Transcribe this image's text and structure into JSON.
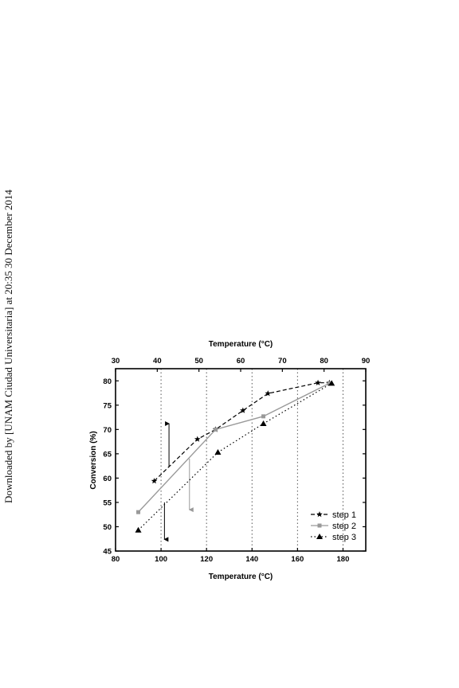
{
  "side_note": "Downloaded by [UNAM Ciudad Universitaria] at 20:35 30 December 2014",
  "chart_data": {
    "type": "line",
    "xlabel": "Temperature (°C)",
    "xlabel_top": "Temperature (°C)",
    "ylabel": "Conversion (%)",
    "xlim": [
      80,
      190
    ],
    "xlim_top": [
      30,
      90
    ],
    "ylim": [
      45,
      82.5
    ],
    "xticks": [
      80,
      100,
      120,
      140,
      160,
      180
    ],
    "xticks_top": [
      30,
      40,
      50,
      60,
      70,
      80,
      90
    ],
    "yticks": [
      45,
      50,
      55,
      60,
      65,
      70,
      75,
      80
    ],
    "vertical_dotted_lines_x": [
      100,
      120,
      140,
      160,
      180
    ],
    "legend_position": "bottom-right",
    "series": [
      {
        "name": "step 1",
        "line_style": "dashed",
        "marker": "star",
        "color": "#000000",
        "x": [
          97,
          116,
          124,
          136,
          147,
          169,
          174
        ],
        "y": [
          59.4,
          68.0,
          70.0,
          73.9,
          77.4,
          79.6,
          79.6
        ]
      },
      {
        "name": "step 2",
        "line_style": "solid",
        "marker": "square",
        "color": "#999999",
        "x": [
          90,
          124,
          145,
          174
        ],
        "y": [
          53.0,
          70.0,
          72.7,
          79.5
        ]
      },
      {
        "name": "step 3",
        "line_style": "dotted",
        "marker": "triangle",
        "color": "#000000",
        "x": [
          90,
          125,
          145,
          175
        ],
        "y": [
          49.3,
          65.3,
          71.2,
          79.5
        ]
      }
    ],
    "arrows": [
      {
        "color": "#000000",
        "x": 103.5,
        "y_from": 62.3,
        "y_to": 71.2
      },
      {
        "color": "#999999",
        "x": 112.5,
        "y_from": 64.0,
        "y_to": 53.5
      },
      {
        "color": "#000000",
        "x": 101.5,
        "y_from": 55.0,
        "y_to": 47.4
      }
    ]
  }
}
